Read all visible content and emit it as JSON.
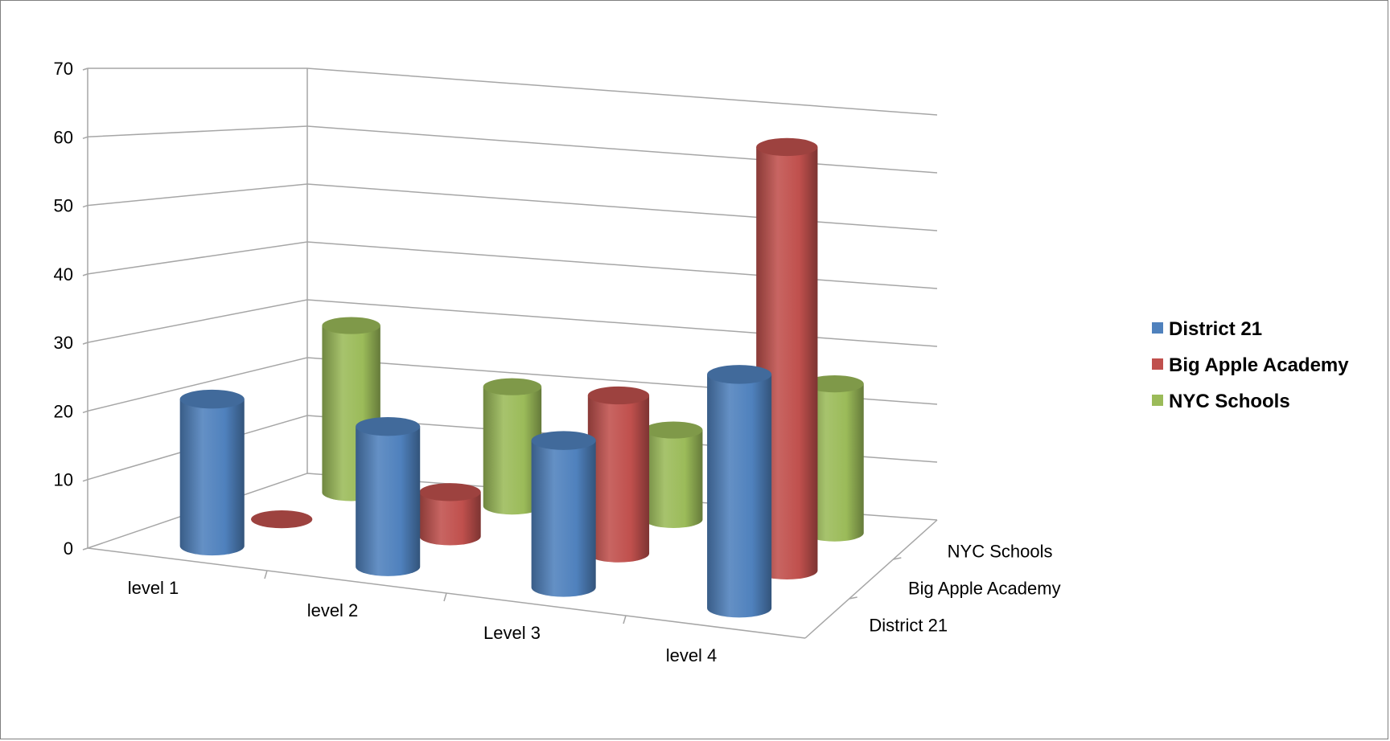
{
  "chart_data": {
    "type": "bar",
    "subtype": "3d-cylinder",
    "title": "",
    "categories": [
      "level 1",
      "level 2",
      "Level 3",
      "level 4"
    ],
    "series": [
      {
        "name": "District 21",
        "values": [
          22,
          21,
          22,
          35
        ],
        "color": "#4f81bd"
      },
      {
        "name": "Big Apple Academy",
        "values": [
          0,
          7,
          25,
          67
        ],
        "color": "#c0504d"
      },
      {
        "name": "NYC Schools",
        "values": [
          28,
          20,
          15,
          25
        ],
        "color": "#9bbb59"
      }
    ],
    "depth_labels": [
      "District 21",
      "Big Apple Academy",
      "NYC Schools"
    ],
    "y_ticks": [
      "0",
      "10",
      "20",
      "30",
      "40",
      "50",
      "60",
      "70"
    ],
    "ylim": [
      0,
      70
    ],
    "grid": true,
    "legend": "right"
  }
}
